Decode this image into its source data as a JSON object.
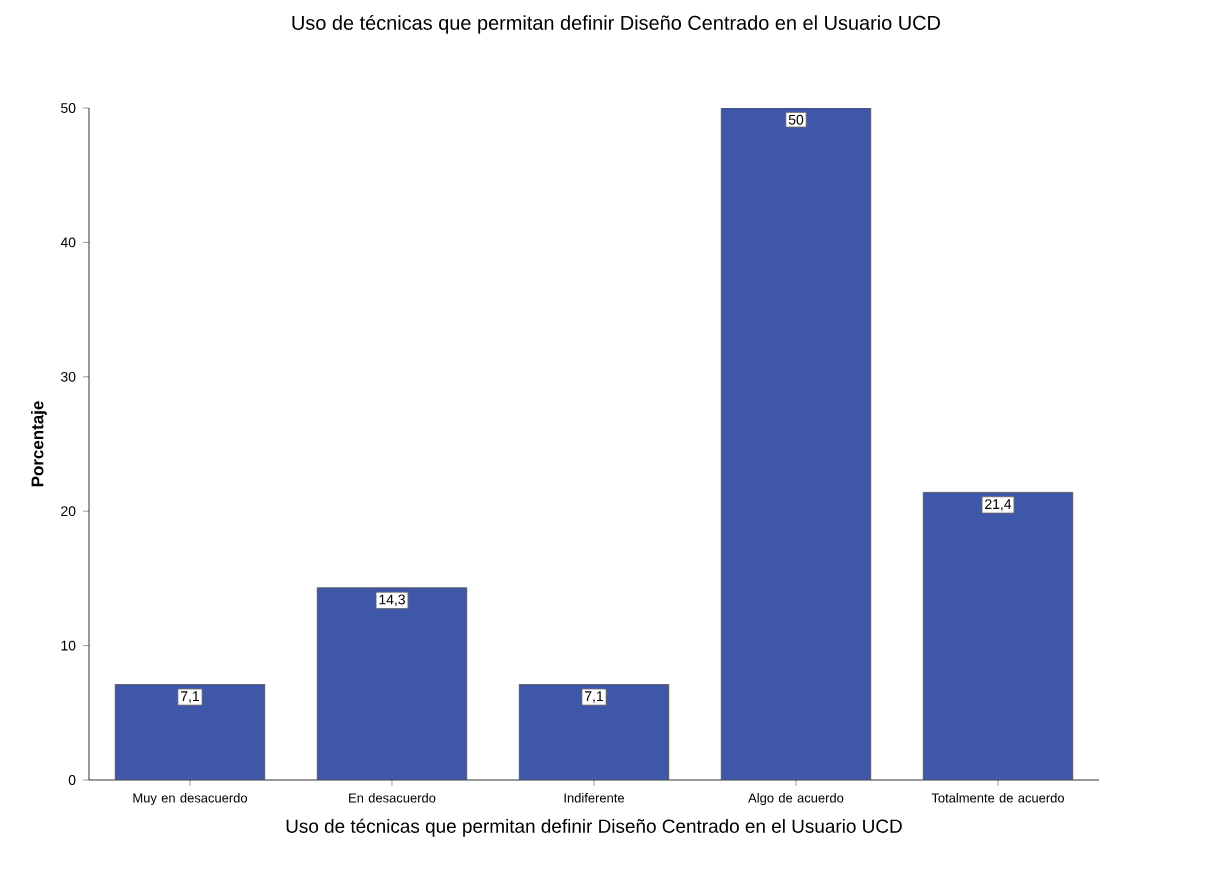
{
  "chart_data": {
    "type": "bar",
    "title": "Uso de técnicas que permitan definir Diseño Centrado en el Usuario   UCD",
    "xlabel": "Uso de técnicas que permitan definir Diseño Centrado en el Usuario   UCD",
    "ylabel": "Porcentaje",
    "categories": [
      "Muy en desacuerdo",
      "En desacuerdo",
      "Indiferente",
      "Algo de acuerdo",
      "Totalmente de acuerdo"
    ],
    "values": [
      7.1,
      14.3,
      7.1,
      50,
      21.4
    ],
    "value_labels": [
      "7,1",
      "14,3",
      "7,1",
      "50",
      "21,4"
    ],
    "color": "#3f57a9",
    "ylim": [
      0,
      50
    ],
    "yticks": [
      0,
      10,
      20,
      30,
      40,
      50
    ]
  }
}
